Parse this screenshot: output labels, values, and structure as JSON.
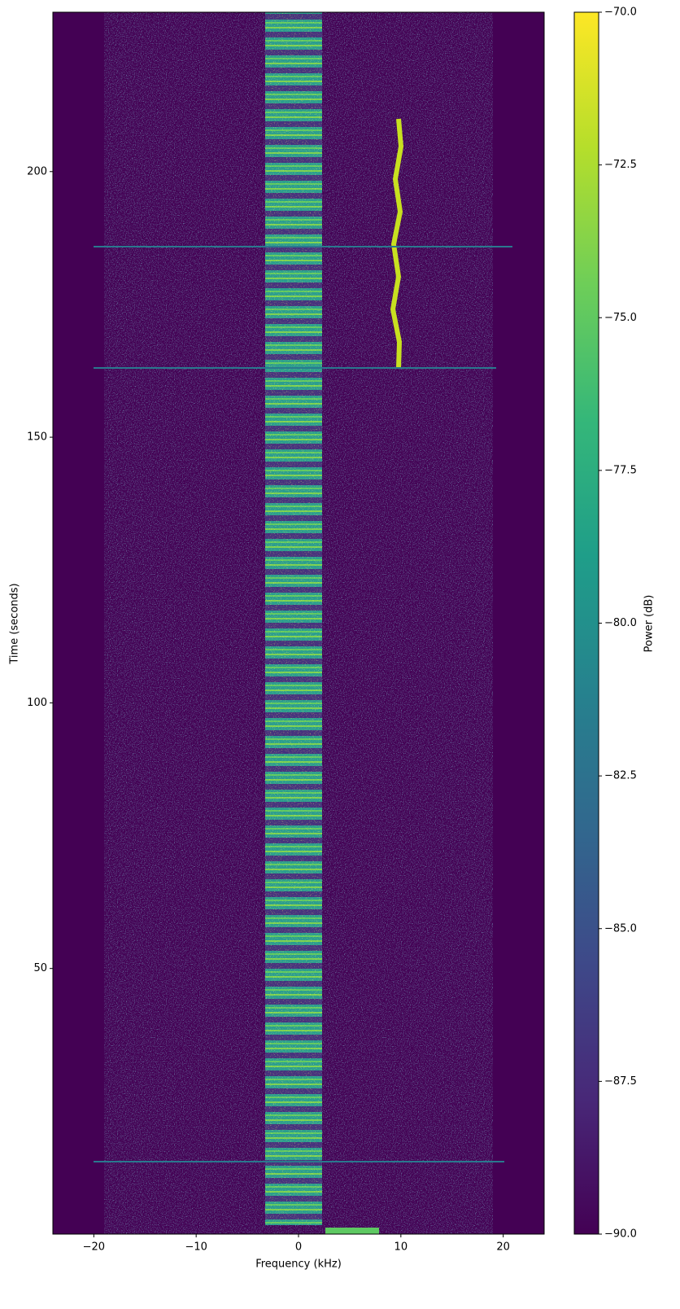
{
  "chart_data": {
    "type": "spectrogram",
    "xlabel": "Frequency (kHz)",
    "ylabel": "Time (seconds)",
    "xlim": [
      -24,
      24
    ],
    "xticks": [
      {
        "value": -20,
        "label": "−20"
      },
      {
        "value": -10,
        "label": "−10"
      },
      0,
      10,
      20
    ],
    "ylim": [
      0,
      230
    ],
    "yticks": [
      50,
      100,
      150,
      200
    ],
    "colormap": "viridis",
    "colorbar": {
      "label": "Power (dB)",
      "lim": [
        -90,
        -70
      ],
      "ticks": [
        {
          "value": -90,
          "label": "−90.0"
        },
        {
          "value": -87.5,
          "label": "−87.5"
        },
        {
          "value": -85,
          "label": "−85.0"
        },
        {
          "value": -82.5,
          "label": "−82.5"
        },
        {
          "value": -80,
          "label": "−80.0"
        },
        {
          "value": -77.5,
          "label": "−77.5"
        },
        {
          "value": -75,
          "label": "−75.0"
        },
        {
          "value": -72.5,
          "label": "−72.5"
        },
        {
          "value": -70,
          "label": "−70.0"
        }
      ]
    }
  }
}
